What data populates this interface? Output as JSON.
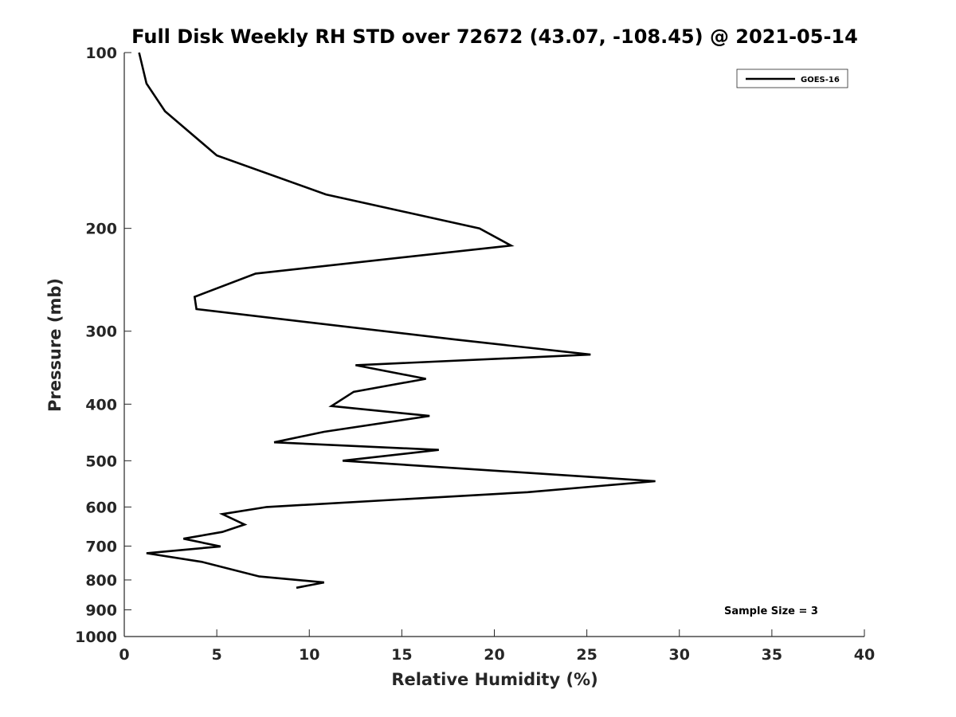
{
  "chart_data": {
    "type": "line",
    "title": "Full Disk Weekly RH STD over 72672 (43.07, -108.45) @ 2021-05-14",
    "xlabel": "Relative Humidity (%)",
    "ylabel": "Pressure (mb)",
    "xlim": [
      0,
      40
    ],
    "ylim": [
      1000,
      100
    ],
    "yscale": "log",
    "grid": false,
    "legend_position": "top-right",
    "x_ticks": [
      0,
      5,
      10,
      15,
      20,
      25,
      30,
      35,
      40
    ],
    "x_tick_labels": [
      "0",
      "5",
      "10",
      "15",
      "20",
      "25",
      "30",
      "35",
      "40"
    ],
    "y_ticks": [
      100,
      200,
      300,
      400,
      500,
      600,
      700,
      800,
      900,
      1000
    ],
    "y_tick_labels": [
      "100",
      "200",
      "300",
      "400",
      "500",
      "600",
      "700",
      "800",
      "900",
      "1000"
    ],
    "series": [
      {
        "name": "GOES-16",
        "color": "#000000",
        "x": [
          0.8,
          1.2,
          2.2,
          5.0,
          10.9,
          19.2,
          20.9,
          7.1,
          3.8,
          3.9,
          17.9,
          25.2,
          12.5,
          16.3,
          12.4,
          11.2,
          16.5,
          10.8,
          8.1,
          17.0,
          11.8,
          28.7,
          21.8,
          7.7,
          5.3,
          6.5,
          5.3,
          3.2,
          5.2,
          1.2,
          4.2,
          7.3,
          10.8,
          9.3
        ],
        "y": [
          100,
          113,
          126,
          150,
          175,
          200,
          214,
          239,
          262,
          275,
          310,
          329,
          343,
          362,
          381,
          403,
          419,
          446,
          465,
          479,
          500,
          542,
          566,
          600,
          617,
          643,
          662,
          680,
          701,
          720,
          745,
          789,
          808,
          825
        ]
      }
    ],
    "annotations": [
      "Sample Size = 3"
    ]
  }
}
